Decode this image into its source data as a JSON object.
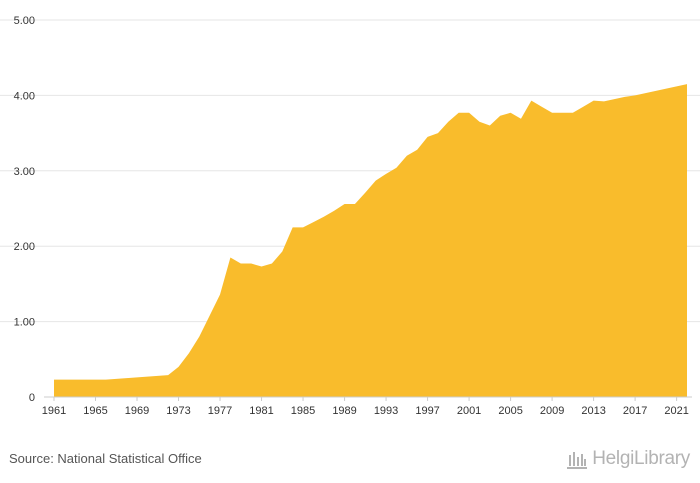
{
  "chart_data": {
    "type": "area",
    "title": "",
    "xlabel": "",
    "ylabel": "",
    "x": [
      1961,
      1962,
      1963,
      1964,
      1965,
      1966,
      1967,
      1968,
      1969,
      1970,
      1971,
      1972,
      1973,
      1974,
      1975,
      1976,
      1977,
      1978,
      1979,
      1980,
      1981,
      1982,
      1983,
      1984,
      1985,
      1986,
      1987,
      1988,
      1989,
      1990,
      1991,
      1992,
      1993,
      1994,
      1995,
      1996,
      1997,
      1998,
      1999,
      2000,
      2001,
      2002,
      2003,
      2004,
      2005,
      2006,
      2007,
      2008,
      2009,
      2010,
      2011,
      2012,
      2013,
      2014,
      2015,
      2016,
      2017,
      2018,
      2019,
      2020,
      2021,
      2022
    ],
    "values": [
      0.23,
      0.23,
      0.23,
      0.23,
      0.23,
      0.23,
      0.24,
      0.25,
      0.26,
      0.27,
      0.28,
      0.29,
      0.4,
      0.58,
      0.8,
      1.08,
      1.36,
      1.85,
      1.77,
      1.77,
      1.73,
      1.77,
      1.93,
      2.25,
      2.25,
      2.32,
      2.39,
      2.47,
      2.56,
      2.56,
      2.71,
      2.87,
      2.96,
      3.04,
      3.2,
      3.28,
      3.45,
      3.5,
      3.65,
      3.77,
      3.77,
      3.65,
      3.6,
      3.73,
      3.77,
      3.69,
      3.93,
      3.85,
      3.77,
      3.77,
      3.77,
      3.85,
      3.93,
      3.92,
      3.95,
      3.98,
      4.0,
      4.03,
      4.06,
      4.09,
      4.12,
      4.15
    ],
    "xlim": [
      1961,
      2022
    ],
    "ylim": [
      0,
      5
    ],
    "x_ticks": [
      "1961",
      "1965",
      "1969",
      "1973",
      "1977",
      "1981",
      "1985",
      "1989",
      "1993",
      "1997",
      "2001",
      "2005",
      "2009",
      "2013",
      "2017",
      "2021"
    ],
    "y_ticks": [
      "0",
      "1.00",
      "2.00",
      "3.00",
      "4.00",
      "5.00"
    ],
    "grid": true,
    "legend": "none"
  },
  "colors": {
    "area_fill": "#f9bc2c",
    "grid": "#e6e6e6",
    "tick_text": "#333333",
    "footer_text": "#555555",
    "logo": "#b3b3b3"
  },
  "footer": {
    "source": "Source: National Statistical Office",
    "logo_text": "HelgiLibrary",
    "logo_icon": "library-columns-icon"
  }
}
